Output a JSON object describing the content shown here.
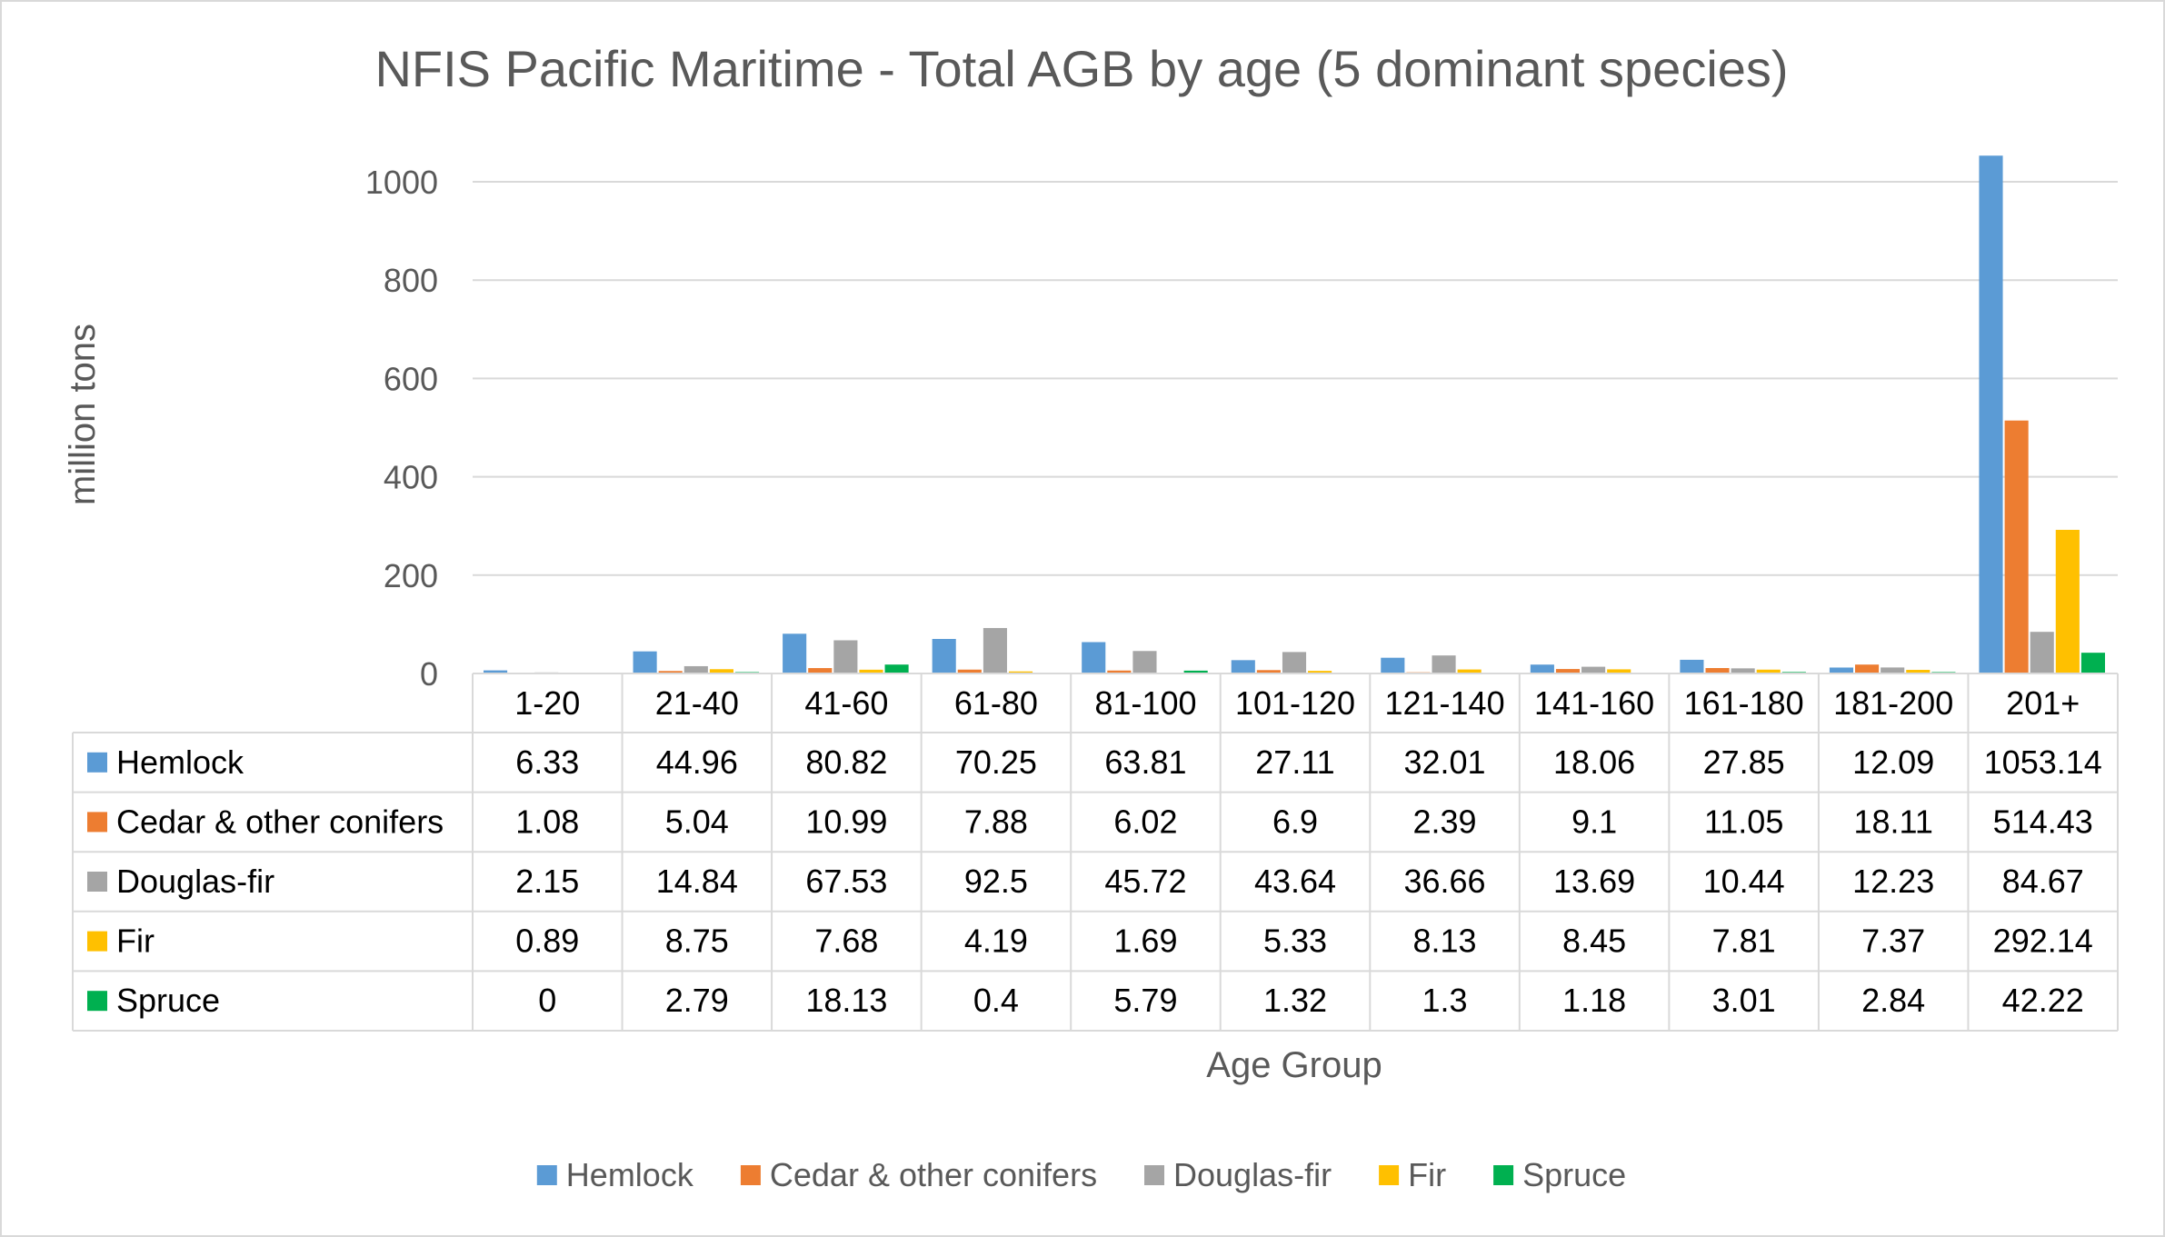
{
  "chart_data": {
    "type": "bar",
    "title": "NFIS Pacific Maritime - Total AGB by age (5 dominant species)",
    "xlabel": "Age Group",
    "ylabel": "million tons",
    "ylim": [
      0,
      1000
    ],
    "yticks": [
      "0",
      "200",
      "400",
      "600",
      "800",
      "1000"
    ],
    "categories": [
      "1-20",
      "21-40",
      "41-60",
      "61-80",
      "81-100",
      "101-120",
      "121-140",
      "141-160",
      "161-180",
      "181-200",
      "201+"
    ],
    "grid": true,
    "legend_position": "bottom",
    "data_table": true,
    "series": [
      {
        "name": "Hemlock",
        "color": "#5b9bd5",
        "values": [
          6.33,
          44.96,
          80.82,
          70.25,
          63.81,
          27.11,
          32.01,
          18.06,
          27.85,
          12.09,
          1053.14
        ],
        "labels": [
          "6.33",
          "44.96",
          "80.82",
          "70.25",
          "63.81",
          "27.11",
          "32.01",
          "18.06",
          "27.85",
          "12.09",
          "1053.14"
        ]
      },
      {
        "name": "Cedar & other conifers",
        "color": "#ed7d31",
        "values": [
          1.08,
          5.04,
          10.99,
          7.88,
          6.02,
          6.9,
          2.39,
          9.1,
          11.05,
          18.11,
          514.43
        ],
        "labels": [
          "1.08",
          "5.04",
          "10.99",
          "7.88",
          "6.02",
          "6.9",
          "2.39",
          "9.1",
          "11.05",
          "18.11",
          "514.43"
        ]
      },
      {
        "name": "Douglas-fir",
        "color": "#a5a5a5",
        "values": [
          2.15,
          14.84,
          67.53,
          92.5,
          45.72,
          43.64,
          36.66,
          13.69,
          10.44,
          12.23,
          84.67
        ],
        "labels": [
          "2.15",
          "14.84",
          "67.53",
          "92.5",
          "45.72",
          "43.64",
          "36.66",
          "13.69",
          "10.44",
          "12.23",
          "84.67"
        ]
      },
      {
        "name": "Fir",
        "color": "#ffc000",
        "values": [
          0.89,
          8.75,
          7.68,
          4.19,
          1.69,
          5.33,
          8.13,
          8.45,
          7.81,
          7.37,
          292.14
        ],
        "labels": [
          "0.89",
          "8.75",
          "7.68",
          "4.19",
          "1.69",
          "5.33",
          "8.13",
          "8.45",
          "7.81",
          "7.37",
          "292.14"
        ]
      },
      {
        "name": "Spruce",
        "color": "#00b050",
        "values": [
          0,
          2.79,
          18.13,
          0.4,
          5.79,
          1.32,
          1.3,
          1.18,
          3.01,
          2.84,
          42.22
        ],
        "labels": [
          "0",
          "2.79",
          "18.13",
          "0.4",
          "5.79",
          "1.32",
          "1.3",
          "1.18",
          "3.01",
          "2.84",
          "42.22"
        ]
      }
    ]
  }
}
